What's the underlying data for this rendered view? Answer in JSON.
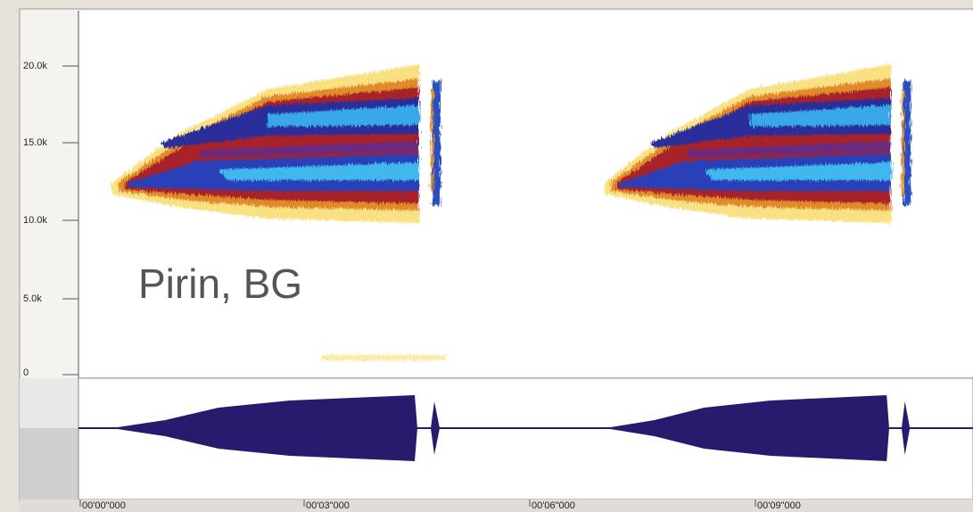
{
  "frequency_axis": {
    "labels": [
      "20.0k",
      "15.0k",
      "10.0k",
      "5.0k",
      "0"
    ]
  },
  "time_axis": {
    "labels": [
      "00'00\"000",
      "00'03\"000",
      "00'06\"000",
      "00'09\"000"
    ]
  },
  "annotation": "Pirin, BG"
}
